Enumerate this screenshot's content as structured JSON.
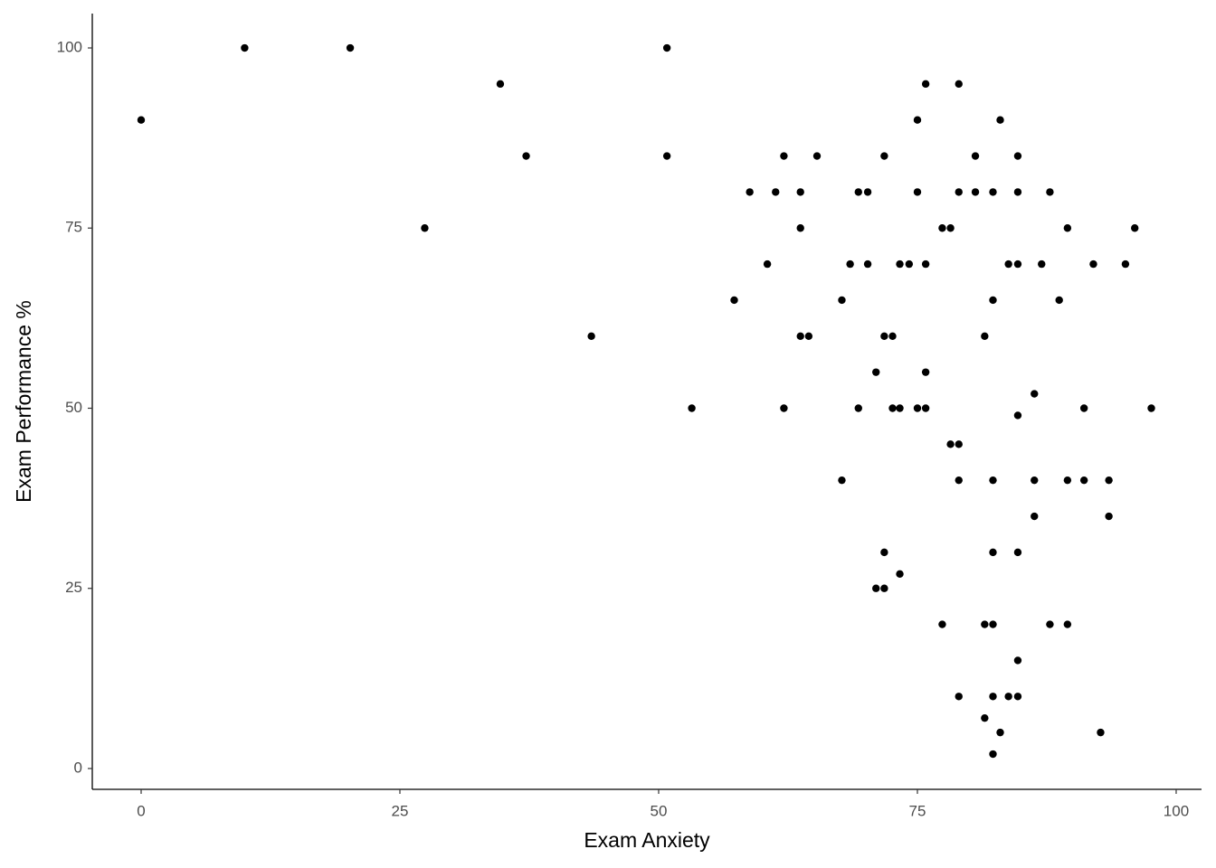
{
  "chart_data": {
    "type": "scatter",
    "x_label": "Exam Anxiety",
    "y_label": "Exam Performance %",
    "color": "#000000",
    "xlim": [
      -4.72,
      102.45
    ],
    "ylim": [
      -2.89,
      104.77
    ],
    "xticks": [
      0,
      25,
      50,
      75,
      100
    ],
    "yticks": [
      0,
      25,
      50,
      75,
      100
    ],
    "grid": false,
    "x": [
      0,
      10,
      20.2,
      34.7,
      37.2,
      27.4,
      43.5,
      50.8,
      50.8,
      53.2,
      57.3,
      58.8,
      60.5,
      61.3,
      62.1,
      62.1,
      63.7,
      63.7,
      63.7,
      64.5,
      65.3,
      67.7,
      67.7,
      68.5,
      69.3,
      70.2,
      69.3,
      70.2,
      71,
      71.8,
      71.8,
      72.6,
      72.6,
      73.3,
      73.3,
      74.2,
      71.8,
      71,
      71.8,
      73.3,
      75,
      75,
      75.8,
      75.8,
      75.8,
      75,
      75.8,
      77.4,
      78.2,
      77.4,
      78.2,
      79,
      79,
      79,
      79,
      79,
      80.6,
      80.6,
      81.5,
      81.5,
      81.5,
      82.3,
      82.3,
      82.3,
      82.3,
      82.3,
      82.3,
      82.3,
      83,
      83,
      83.8,
      83.8,
      84.7,
      84.7,
      84.7,
      84.7,
      84.7,
      84.7,
      84.7,
      86.3,
      86.3,
      86.3,
      87,
      87.8,
      87.8,
      88.7,
      89.5,
      89.5,
      89.5,
      91.1,
      91.1,
      92,
      92.7,
      93.5,
      93.5,
      95.1,
      96,
      97.6
    ],
    "y": [
      90,
      100,
      100,
      95,
      85,
      75,
      60,
      100,
      85,
      50,
      65,
      80,
      70,
      80,
      85,
      50,
      80,
      75,
      60,
      60,
      85,
      65,
      40,
      70,
      80,
      80,
      50,
      70,
      55,
      85,
      60,
      60,
      50,
      50,
      70,
      70,
      30,
      25,
      25,
      27,
      90,
      80,
      95,
      70,
      55,
      50,
      50,
      75,
      75,
      20,
      45,
      45,
      95,
      80,
      40,
      10,
      85,
      80,
      60,
      20,
      7,
      80,
      65,
      40,
      30,
      20,
      10,
      2,
      90,
      5,
      70,
      10,
      85,
      80,
      70,
      49,
      30,
      15,
      10,
      52,
      40,
      35,
      70,
      80,
      20,
      65,
      75,
      40,
      20,
      50,
      40,
      70,
      5,
      40,
      35,
      70,
      75,
      50
    ]
  }
}
